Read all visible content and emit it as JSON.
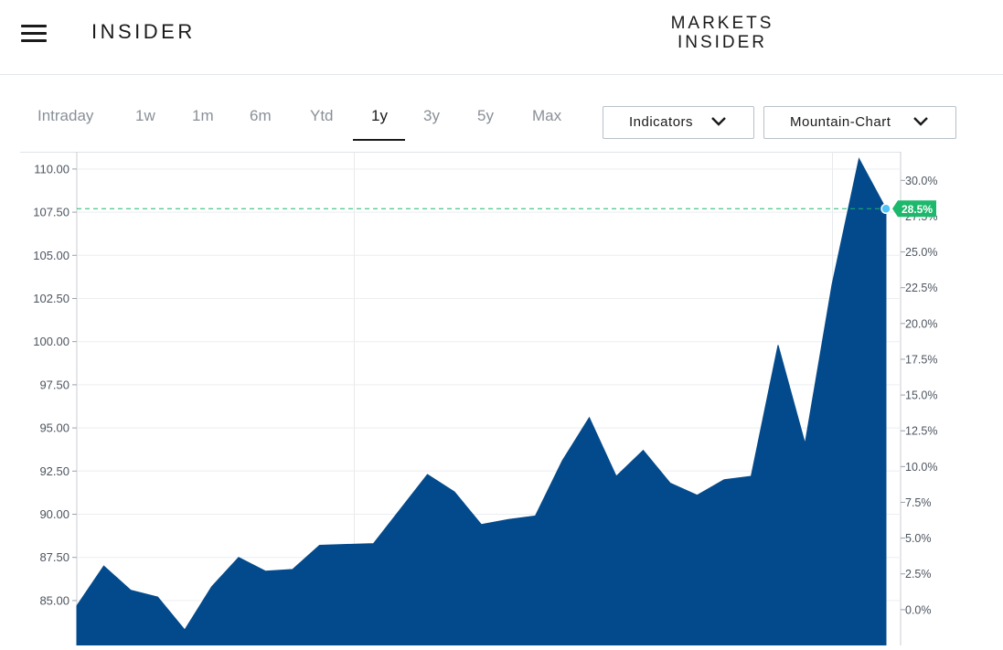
{
  "header": {
    "logo": "INSIDER",
    "mi_logo_line1": "MARKETS",
    "mi_logo_line2": "INSIDER"
  },
  "tabs": [
    {
      "label": "Intraday",
      "active": false
    },
    {
      "label": "1w",
      "active": false
    },
    {
      "label": "1m",
      "active": false
    },
    {
      "label": "6m",
      "active": false
    },
    {
      "label": "Ytd",
      "active": false
    },
    {
      "label": "1y",
      "active": true
    },
    {
      "label": "3y",
      "active": false
    },
    {
      "label": "5y",
      "active": false
    },
    {
      "label": "Max",
      "active": false
    }
  ],
  "controls": {
    "indicators_label": "Indicators",
    "chart_type_label": "Mountain-Chart"
  },
  "colors": {
    "area": "#034a8c",
    "reference_line": "#1cb86b",
    "badge": "#1cb86b",
    "marker": "#4fc3f7"
  },
  "chart_data": {
    "type": "area",
    "y_left_ticks": [
      "110.00",
      "107.50",
      "105.00",
      "102.50",
      "100.00",
      "97.50",
      "95.00",
      "92.50",
      "90.00",
      "87.50",
      "85.00"
    ],
    "y_right_ticks": [
      "30.0%",
      "27.5%",
      "25.0%",
      "22.5%",
      "20.0%",
      "17.5%",
      "15.0%",
      "12.5%",
      "10.0%",
      "7.5%",
      "5.0%",
      "2.5%",
      "0.0%"
    ],
    "ylim_left": [
      82.4,
      111.0
    ],
    "ylim_right_pct": [
      -2.5,
      32.0
    ],
    "current_change_label": "28.5%",
    "current_value": 107.7,
    "grid": true,
    "series": [
      {
        "values": [
          84.7,
          87.0,
          85.6,
          85.2,
          83.3,
          85.8,
          87.5,
          86.7,
          86.8,
          88.2,
          88.25,
          88.3,
          90.3,
          92.3,
          91.3,
          89.4,
          89.7,
          89.9,
          93.1,
          95.6,
          92.2,
          93.7,
          91.8,
          91.1,
          92.0,
          92.2,
          99.8,
          94.1,
          103.3,
          110.6,
          107.7
        ]
      }
    ]
  }
}
